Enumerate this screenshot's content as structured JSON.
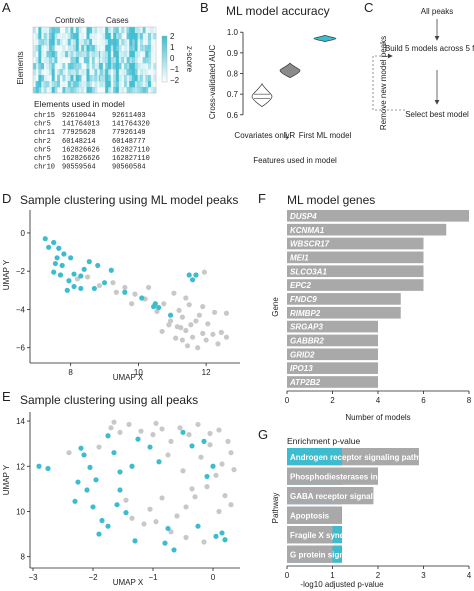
{
  "colors": {
    "teal": "#3dbcd0",
    "grey": "#c8c8c8",
    "bar_grey": "#a9a9a9",
    "heat_low": "#ffffff",
    "heat_high": "#3dbcd0"
  },
  "panel_labels": {
    "a": "A",
    "b": "B",
    "c": "C",
    "d": "D",
    "e": "E",
    "f": "F",
    "g": "G"
  },
  "panel_a": {
    "group_labels": [
      "Controls",
      "Cases"
    ],
    "ylabel": "Elements",
    "colorbar_label": "z-score",
    "colorbar_ticks": [
      "2",
      "1",
      "0",
      "−1",
      "−2"
    ],
    "table_title": "Elements used in model",
    "table_rows": [
      {
        "chr": "chr15",
        "start": "92610044",
        "end": "92611403"
      },
      {
        "chr": "chr5",
        "start": "141764013",
        "end": "141764320"
      },
      {
        "chr": "chr11",
        "start": "77925628",
        "end": "77926149"
      },
      {
        "chr": "chr2",
        "start": "60148214",
        "end": "60148777"
      },
      {
        "chr": "chr5",
        "start": "162826626",
        "end": "162827110"
      },
      {
        "chr": "chr5",
        "start": "162826626",
        "end": "162827110"
      },
      {
        "chr": "chr10",
        "start": "90559564",
        "end": "90560584"
      }
    ]
  },
  "panel_b": {
    "title": "ML model accuracy",
    "ylabel": "Cross-validated AUC",
    "xlabel": "Features used in model",
    "yticks": [
      "0.6",
      "0.7",
      "0.8",
      "0.9",
      "1.0"
    ],
    "categories": [
      "Covariates only",
      "LR",
      "First ML model"
    ]
  },
  "panel_c": {
    "steps": [
      "All peaks",
      "Build 5 models across 5 folds",
      "Select best model"
    ],
    "side_label": "Remove new model peaks"
  },
  "panel_d": {
    "title": "Sample clustering using ML model peaks",
    "xlabel": "UMAP X",
    "ylabel": "UMAP Y",
    "xticks": [
      "8",
      "10",
      "12"
    ],
    "yticks": [
      "0",
      "−2",
      "−4",
      "−6"
    ]
  },
  "panel_e": {
    "title": "Sample clustering using all peaks",
    "xlabel": "UMAP X",
    "ylabel": "UMAP Y",
    "xticks": [
      "−3",
      "−2",
      "−1",
      "0"
    ],
    "yticks": [
      "14",
      "12",
      "10",
      "8"
    ]
  },
  "panel_f": {
    "title": "ML model genes",
    "ylabel": "Gene",
    "xlabel": "Number of models",
    "xticks": [
      "0",
      "2",
      "4",
      "6",
      "8"
    ]
  },
  "panel_g": {
    "header": "Enrichment p-value",
    "ylabel": "Pathway",
    "xlabel": "-log10 adjusted p-value",
    "xticks": [
      "0",
      "1",
      "2",
      "3",
      "4"
    ]
  },
  "chart_data": [
    {
      "panel": "B",
      "type": "violin",
      "title": "ML model accuracy",
      "ylabel": "Cross-validated AUC",
      "xlabel": "Features used in model",
      "ylim": [
        0.57,
        1.03
      ],
      "categories": [
        "Covariates only",
        "LR",
        "First ML model"
      ],
      "series": [
        {
          "center": 0.69,
          "min": 0.64,
          "max": 0.75,
          "lines": [
            0.68,
            0.7
          ],
          "fill": "#ffffff"
        },
        {
          "center": 0.815,
          "min": 0.78,
          "max": 0.85,
          "lines": [],
          "fill": "#8a8a8a"
        },
        {
          "center": 0.97,
          "min": 0.955,
          "max": 0.985,
          "lines": [],
          "fill": "#3dbcd0"
        }
      ]
    },
    {
      "panel": "D",
      "type": "scatter",
      "title": "Sample clustering using ML model peaks",
      "xlabel": "UMAP X",
      "ylabel": "UMAP Y",
      "xlim": [
        6.8,
        13.0
      ],
      "ylim": [
        -6.8,
        1.2
      ],
      "series": [
        {
          "group": "cases",
          "color": "#3dbcd0",
          "x": [
            7.25,
            7.5,
            7.65,
            7.35,
            7.8,
            8.0,
            7.55,
            7.75,
            7.5,
            8.1,
            8.3,
            7.7,
            7.95,
            8.55,
            8.4,
            8.8,
            9.2,
            9.0,
            8.7,
            8.1,
            8.3,
            7.9,
            9.6,
            10.1,
            10.5,
            10.45,
            10.6,
            10.95,
            11.7,
            11.6,
            11.5,
            7.6
          ],
          "y": [
            -0.3,
            -0.5,
            -0.8,
            -0.75,
            -1.1,
            -1.3,
            -1.6,
            -1.7,
            -2.05,
            -2.15,
            -2.25,
            -2.2,
            -2.5,
            -1.5,
            -1.9,
            -1.7,
            -1.95,
            -2.6,
            -2.9,
            -2.8,
            -2.9,
            -3.0,
            -3.1,
            -3.4,
            -3.7,
            -3.85,
            -3.9,
            -4.3,
            -2.2,
            -2.45,
            -2.2,
            -1.3
          ]
        },
        {
          "group": "controls",
          "color": "#c8c8c8",
          "x": [
            8.2,
            8.5,
            8.85,
            9.25,
            9.6,
            9.35,
            9.9,
            10.2,
            10.75,
            10.55,
            10.95,
            11.15,
            11.4,
            11.3,
            11.6,
            11.45,
            11.9,
            11.75,
            12.0,
            12.2,
            12.45,
            12.6,
            11.55,
            11.3,
            11.2,
            11.8,
            10.9,
            11.1,
            11.5,
            11.9,
            12.25,
            12.05,
            11.7,
            11.4,
            12.6,
            12.35,
            11.05,
            10.7,
            11.25,
            11.95,
            10.3,
            9.8
          ],
          "y": [
            -2.4,
            -2.3,
            -2.75,
            -2.6,
            -2.85,
            -3.1,
            -3.2,
            -3.45,
            -3.7,
            -4.1,
            -4.6,
            -4.9,
            -5.1,
            -5.6,
            -5.45,
            -5.9,
            -5.25,
            -6.0,
            -5.6,
            -5.3,
            -5.2,
            -5.45,
            -4.8,
            -4.4,
            -4.05,
            -4.3,
            -4.8,
            -5.5,
            -3.75,
            -3.85,
            -4.15,
            -4.75,
            -4.6,
            -3.4,
            -4.2,
            -5.8,
            -3.15,
            -5.15,
            -4.95,
            -2.05,
            -2.85,
            -3.7
          ]
        }
      ]
    },
    {
      "panel": "E",
      "type": "scatter",
      "title": "Sample clustering using all peaks",
      "xlabel": "UMAP X",
      "ylabel": "UMAP Y",
      "xlim": [
        -3.05,
        0.45
      ],
      "ylim": [
        7.5,
        14.4
      ],
      "series": [
        {
          "group": "cases",
          "color": "#3dbcd0",
          "x": [
            -2.9,
            -2.75,
            -2.2,
            -2.15,
            -2.05,
            -1.95,
            -2.1,
            -2.3,
            -2.0,
            -1.85,
            -1.75,
            -1.65,
            -1.55,
            -1.6,
            -1.45,
            -1.75,
            -1.25,
            -1.05,
            -0.9,
            -0.75,
            -0.8,
            -0.65,
            -0.35,
            -0.15,
            0.0,
            0.05,
            0.15,
            0.2,
            -0.5,
            -1.3,
            -1.55,
            -0.1,
            -0.25,
            -1.9,
            -1.35,
            -2.25
          ],
          "y": [
            12.0,
            11.9,
            12.8,
            12.5,
            11.95,
            11.4,
            10.95,
            10.45,
            10.2,
            9.6,
            13.35,
            12.6,
            11.75,
            10.3,
            9.95,
            9.35,
            13.2,
            12.85,
            12.2,
            9.25,
            8.6,
            8.3,
            12.9,
            13.1,
            12.0,
            8.9,
            9.05,
            8.75,
            13.5,
            8.7,
            10.95,
            11.55,
            9.35,
            9.0,
            12.0,
            11.3
          ]
        },
        {
          "group": "controls",
          "color": "#c8c8c8",
          "x": [
            -1.7,
            -1.55,
            -1.4,
            -1.2,
            -1.0,
            -0.85,
            -0.7,
            -0.55,
            -0.4,
            -0.25,
            -0.05,
            0.1,
            0.25,
            0.3,
            0.15,
            0.05,
            -0.1,
            -0.3,
            -0.45,
            -0.6,
            -0.95,
            -1.15,
            -1.35,
            -1.05,
            -0.85,
            -0.5,
            -0.2,
            0.2,
            0.3,
            -0.7,
            -0.45,
            -0.15,
            0.1,
            -1.65,
            -2.4,
            -1.9,
            -0.35,
            -0.95,
            -0.05,
            0.35,
            -1.45,
            -0.75
          ],
          "y": [
            13.7,
            13.5,
            13.85,
            13.55,
            13.4,
            13.65,
            13.1,
            13.7,
            13.4,
            13.85,
            13.45,
            13.6,
            13.1,
            12.6,
            12.1,
            11.6,
            11.1,
            10.65,
            10.2,
            9.8,
            9.55,
            9.45,
            9.7,
            10.1,
            10.6,
            11.8,
            12.4,
            10.7,
            10.3,
            9.1,
            8.85,
            8.65,
            10.0,
            13.95,
            12.6,
            12.85,
            11.0,
            13.9,
            12.95,
            11.85,
            10.5,
            12.5
          ]
        }
      ]
    },
    {
      "panel": "F",
      "type": "bar",
      "title": "ML model genes",
      "ylabel": "Gene",
      "xlabel": "Number of models",
      "xlim": [
        0,
        8
      ],
      "categories": [
        "DUSP4",
        "KCNMA1",
        "WBSCR17",
        "MEI1",
        "SLCO3A1",
        "EPC2",
        "FNDC9",
        "RIMBP2",
        "SRGAP3",
        "GABBR2",
        "GRID2",
        "IPO13",
        "ATP2B2"
      ],
      "values": [
        8,
        7,
        6,
        6,
        6,
        6,
        5,
        5,
        4,
        4,
        4,
        4,
        4
      ]
    },
    {
      "panel": "G",
      "type": "bar",
      "header": "Enrichment p-value",
      "ylabel": "Pathway",
      "xlabel": "-log10 adjusted p-value",
      "xlim": [
        0,
        4
      ],
      "categories": [
        "Androgen receptor signaling pathway",
        "Phosphodiesterases in neuronal function",
        "GABA receptor signaling",
        "Apoptosis",
        "Fragile X syndrome",
        "G protein signaling pathways"
      ],
      "values": [
        2.9,
        2.0,
        1.9,
        1.2,
        1.0,
        1.0
      ]
    }
  ]
}
